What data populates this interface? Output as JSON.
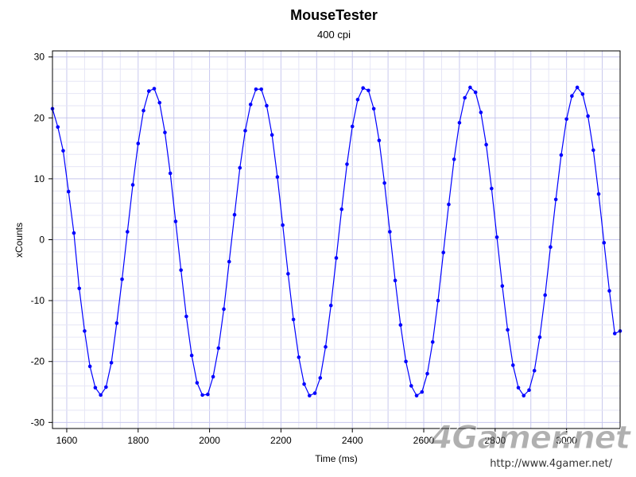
{
  "chart_data": {
    "type": "line",
    "title": "MouseTester",
    "subtitle": "400 cpi",
    "xlabel": "Time (ms)",
    "ylabel": "xCounts",
    "xlim": [
      1560,
      3150
    ],
    "ylim": [
      -31,
      31
    ],
    "x_ticks": [
      1600,
      1800,
      2000,
      2200,
      2400,
      2600,
      2800,
      3000
    ],
    "y_ticks": [
      30,
      20,
      10,
      0,
      -10,
      -20,
      -30
    ],
    "x_tick_labels": [
      "1600",
      "1800",
      "2000",
      "2200",
      "2400",
      "2600",
      "2800",
      "3000"
    ],
    "y_tick_labels": [
      "30",
      "20",
      "10",
      "0",
      "-10",
      "-20",
      "-30"
    ],
    "grid": true,
    "series": [
      {
        "name": "",
        "color": "#0000ff",
        "style": "points-with-line",
        "x": [
          1560,
          1575,
          1590,
          1605,
          1620,
          1635,
          1650,
          1665,
          1680,
          1695,
          1710,
          1725,
          1740,
          1755,
          1770,
          1785,
          1800,
          1815,
          1830,
          1845,
          1860,
          1875,
          1890,
          1905,
          1920,
          1935,
          1950,
          1965,
          1980,
          1995,
          2010,
          2025,
          2040,
          2055,
          2070,
          2085,
          2100,
          2115,
          2130,
          2145,
          2160,
          2175,
          2190,
          2205,
          2220,
          2235,
          2250,
          2265,
          2280,
          2295,
          2310,
          2325,
          2340,
          2355,
          2370,
          2385,
          2400,
          2415,
          2430,
          2445,
          2460,
          2475,
          2490,
          2505,
          2520,
          2535,
          2550,
          2565,
          2580,
          2595,
          2610,
          2625,
          2640,
          2655,
          2670,
          2685,
          2700,
          2715,
          2730,
          2745,
          2760,
          2775,
          2790,
          2805,
          2820,
          2835,
          2850,
          2865,
          2880,
          2895,
          2910,
          2925,
          2940,
          2955,
          2970,
          2985,
          3000,
          3015,
          3030,
          3045,
          3060,
          3075,
          3090,
          3105,
          3120,
          3135,
          3150
        ],
        "y": [
          21.5,
          18.5,
          14.6,
          7.9,
          1.1,
          -8.0,
          -15.0,
          -20.8,
          -24.3,
          -25.5,
          -24.2,
          -20.2,
          -13.7,
          -6.5,
          1.3,
          9.0,
          15.8,
          21.2,
          24.4,
          24.8,
          22.5,
          17.6,
          10.9,
          3.0,
          -5.0,
          -12.6,
          -19.0,
          -23.5,
          -25.5,
          -25.4,
          -22.5,
          -17.8,
          -11.4,
          -3.6,
          4.1,
          11.8,
          17.9,
          22.2,
          24.7,
          24.7,
          22.0,
          17.2,
          10.3,
          2.4,
          -5.6,
          -13.1,
          -19.3,
          -23.7,
          -25.6,
          -25.2,
          -22.7,
          -17.6,
          -10.8,
          -3.0,
          5.0,
          12.4,
          18.6,
          23.0,
          24.9,
          24.5,
          21.5,
          16.3,
          9.3,
          1.3,
          -6.7,
          -14.0,
          -20.0,
          -24.0,
          -25.6,
          -25.0,
          -22.0,
          -16.8,
          -10.0,
          -2.1,
          5.8,
          13.2,
          19.2,
          23.3,
          25.0,
          24.2,
          20.9,
          15.6,
          8.4,
          0.4,
          -7.6,
          -14.8,
          -20.6,
          -24.3,
          -25.6,
          -24.7,
          -21.5,
          -16.0,
          -9.1,
          -1.2,
          6.6,
          13.9,
          19.8,
          23.6,
          25.0,
          23.9,
          20.3,
          14.7,
          7.5,
          -0.5,
          -8.4,
          -15.4,
          -15.0
        ]
      }
    ]
  },
  "watermark": {
    "logo": "4Gamer.net",
    "url": "http://www.4gamer.net/"
  }
}
